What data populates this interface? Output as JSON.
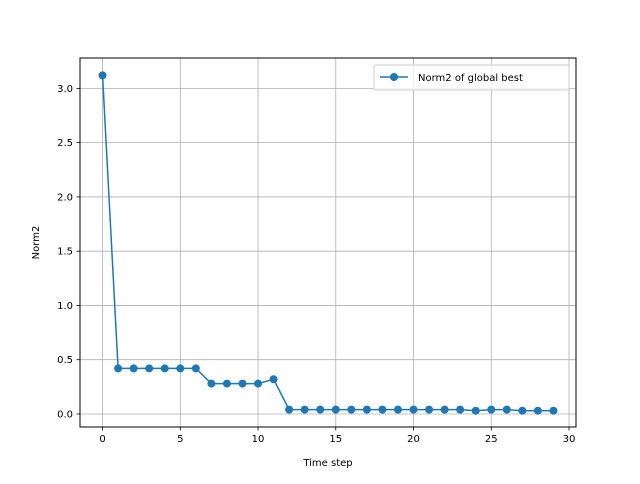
{
  "colors": {
    "series": "#1f77b4",
    "grid": "#b0b0b0",
    "axes": "#000000"
  },
  "chart_data": {
    "type": "line",
    "title": "",
    "xlabel": "Time step",
    "ylabel": "Norm2",
    "xlim": [
      -1.45,
      30.45
    ],
    "ylim": [
      -0.12,
      3.28
    ],
    "xticks": [
      0,
      5,
      10,
      15,
      20,
      25,
      30
    ],
    "yticks": [
      0.0,
      0.5,
      1.0,
      1.5,
      2.0,
      2.5,
      3.0
    ],
    "xtick_labels": [
      "0",
      "5",
      "10",
      "15",
      "20",
      "25",
      "30"
    ],
    "ytick_labels": [
      "0.0",
      "0.5",
      "1.0",
      "1.5",
      "2.0",
      "2.5",
      "3.0"
    ],
    "grid": true,
    "legend_position": "top-right",
    "series": [
      {
        "name": "Norm2 of global best",
        "marker": "circle",
        "x": [
          0,
          1,
          2,
          3,
          4,
          5,
          6,
          7,
          8,
          9,
          10,
          11,
          12,
          13,
          14,
          15,
          16,
          17,
          18,
          19,
          20,
          21,
          22,
          23,
          24,
          25,
          26,
          27,
          28,
          29
        ],
        "y": [
          3.12,
          0.42,
          0.42,
          0.42,
          0.42,
          0.42,
          0.42,
          0.28,
          0.28,
          0.28,
          0.28,
          0.32,
          0.04,
          0.04,
          0.04,
          0.04,
          0.04,
          0.04,
          0.04,
          0.04,
          0.04,
          0.04,
          0.04,
          0.04,
          0.03,
          0.04,
          0.04,
          0.03,
          0.03,
          0.03
        ]
      }
    ]
  }
}
